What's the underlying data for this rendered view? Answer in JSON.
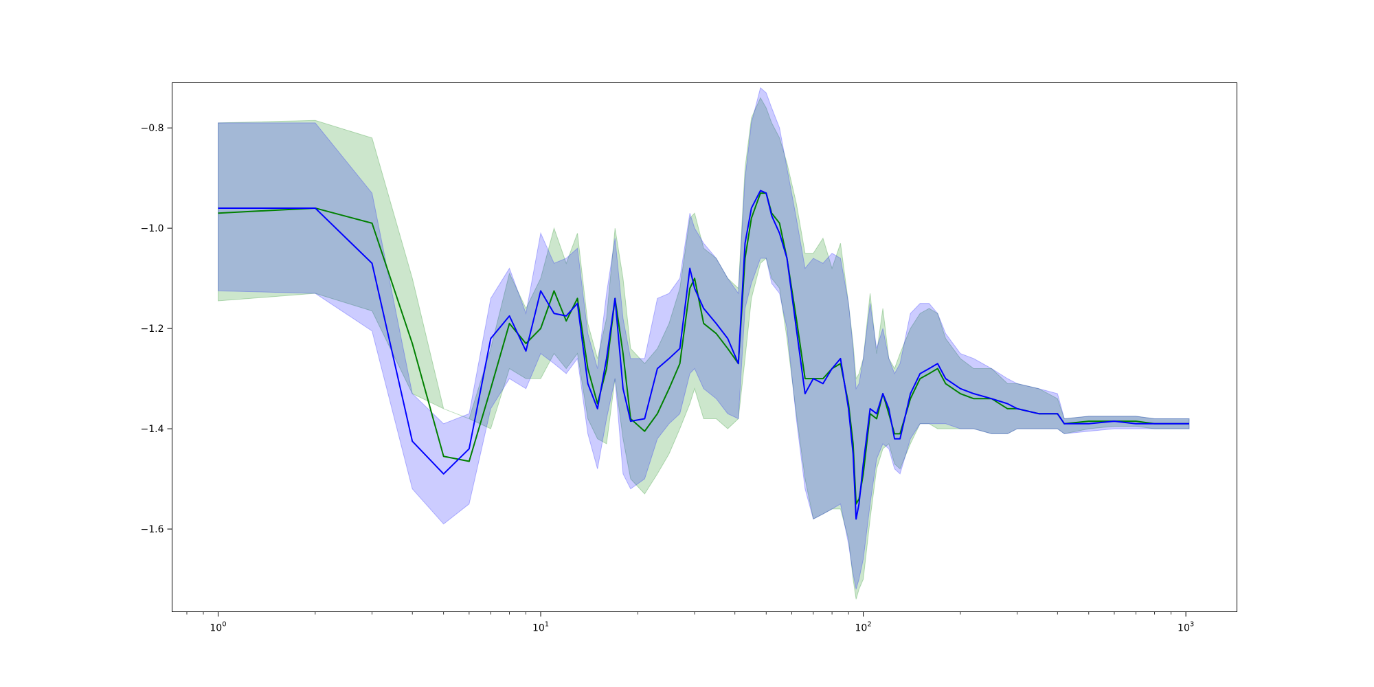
{
  "chart_data": {
    "type": "line",
    "title": "",
    "xlabel": "",
    "ylabel": "",
    "xscale": "log",
    "xlim": [
      0.72,
      1440
    ],
    "ylim": [
      -1.765,
      -0.71
    ],
    "grid": false,
    "legend": "none",
    "x_ticks": [
      {
        "value": 1,
        "base": "10",
        "exp": "0"
      },
      {
        "value": 10,
        "base": "10",
        "exp": "1"
      },
      {
        "value": 100,
        "base": "10",
        "exp": "2"
      },
      {
        "value": 1000,
        "base": "10",
        "exp": "3"
      }
    ],
    "y_ticks": [
      {
        "value": -0.8,
        "label": "−0.8"
      },
      {
        "value": -1.0,
        "label": "−1.0"
      },
      {
        "value": -1.2,
        "label": "−1.2"
      },
      {
        "value": -1.4,
        "label": "−1.4"
      },
      {
        "value": -1.6,
        "label": "−1.6"
      }
    ],
    "series": [
      {
        "color": "#008000",
        "band_color": "#008000",
        "x": [
          1,
          2,
          3,
          4,
          5,
          6,
          7,
          8,
          9,
          10,
          11,
          12,
          13,
          14,
          15,
          16,
          17,
          18,
          19,
          21,
          23,
          25,
          27,
          29,
          30,
          32,
          35,
          38,
          41,
          43,
          45,
          48,
          50,
          52,
          55,
          58,
          62,
          66,
          70,
          75,
          80,
          85,
          90,
          93,
          95,
          97,
          100,
          105,
          110,
          115,
          120,
          125,
          130,
          140,
          150,
          160,
          170,
          180,
          200,
          220,
          250,
          280,
          300,
          350,
          400,
          420,
          500,
          600,
          700,
          800,
          900,
          1024
        ],
        "y": [
          -0.97,
          -0.96,
          -0.99,
          -1.23,
          -1.455,
          -1.465,
          -1.32,
          -1.19,
          -1.23,
          -1.2,
          -1.125,
          -1.185,
          -1.14,
          -1.28,
          -1.35,
          -1.28,
          -1.14,
          -1.25,
          -1.38,
          -1.405,
          -1.37,
          -1.32,
          -1.27,
          -1.12,
          -1.1,
          -1.19,
          -1.21,
          -1.24,
          -1.27,
          -1.06,
          -0.98,
          -0.93,
          -0.93,
          -0.97,
          -0.99,
          -1.06,
          -1.18,
          -1.3,
          -1.3,
          -1.3,
          -1.28,
          -1.27,
          -1.35,
          -1.43,
          -1.55,
          -1.54,
          -1.49,
          -1.37,
          -1.38,
          -1.33,
          -1.37,
          -1.41,
          -1.41,
          -1.34,
          -1.3,
          -1.29,
          -1.28,
          -1.31,
          -1.33,
          -1.34,
          -1.34,
          -1.36,
          -1.36,
          -1.37,
          -1.37,
          -1.39,
          -1.385,
          -1.385,
          -1.385,
          -1.39,
          -1.39,
          -1.39
        ],
        "lower": [
          -1.145,
          -1.13,
          -1.165,
          -1.33,
          -1.36,
          -1.38,
          -1.4,
          -1.28,
          -1.3,
          -1.3,
          -1.25,
          -1.28,
          -1.25,
          -1.38,
          -1.42,
          -1.43,
          -1.3,
          -1.42,
          -1.5,
          -1.53,
          -1.49,
          -1.45,
          -1.4,
          -1.35,
          -1.32,
          -1.38,
          -1.38,
          -1.4,
          -1.38,
          -1.26,
          -1.14,
          -1.07,
          -1.06,
          -1.1,
          -1.12,
          -1.22,
          -1.37,
          -1.5,
          -1.58,
          -1.57,
          -1.56,
          -1.56,
          -1.62,
          -1.7,
          -1.74,
          -1.72,
          -1.7,
          -1.58,
          -1.48,
          -1.44,
          -1.43,
          -1.47,
          -1.48,
          -1.43,
          -1.39,
          -1.39,
          -1.4,
          -1.4,
          -1.4,
          -1.4,
          -1.41,
          -1.41,
          -1.4,
          -1.4,
          -1.4,
          -1.41,
          -1.4,
          -1.395,
          -1.395,
          -1.4,
          -1.4,
          -1.4
        ],
        "upper": [
          -0.79,
          -0.785,
          -0.82,
          -1.1,
          -1.36,
          -1.38,
          -1.24,
          -1.09,
          -1.16,
          -1.1,
          -1.0,
          -1.07,
          -1.01,
          -1.19,
          -1.26,
          -1.18,
          -1.0,
          -1.1,
          -1.24,
          -1.27,
          -1.24,
          -1.19,
          -1.12,
          -0.98,
          -0.97,
          -1.04,
          -1.06,
          -1.1,
          -1.12,
          -0.88,
          -0.78,
          -0.74,
          -0.76,
          -0.79,
          -0.82,
          -0.87,
          -0.95,
          -1.05,
          -1.05,
          -1.02,
          -1.08,
          -1.03,
          -1.15,
          -1.23,
          -1.3,
          -1.29,
          -1.26,
          -1.13,
          -1.25,
          -1.16,
          -1.26,
          -1.28,
          -1.25,
          -1.2,
          -1.17,
          -1.16,
          -1.17,
          -1.22,
          -1.26,
          -1.28,
          -1.28,
          -1.31,
          -1.31,
          -1.32,
          -1.34,
          -1.38,
          -1.375,
          -1.375,
          -1.375,
          -1.38,
          -1.38,
          -1.38
        ]
      },
      {
        "color": "#0000ff",
        "band_color": "#0000ff",
        "x": [
          1,
          2,
          3,
          4,
          5,
          6,
          7,
          8,
          9,
          10,
          11,
          12,
          13,
          14,
          15,
          16,
          17,
          18,
          19,
          21,
          23,
          25,
          27,
          29,
          30,
          32,
          35,
          38,
          41,
          43,
          45,
          48,
          50,
          52,
          55,
          58,
          62,
          66,
          70,
          75,
          80,
          85,
          90,
          93,
          95,
          97,
          100,
          105,
          110,
          115,
          120,
          125,
          130,
          140,
          150,
          160,
          170,
          180,
          200,
          220,
          250,
          280,
          300,
          350,
          400,
          420,
          500,
          600,
          700,
          800,
          900,
          1024
        ],
        "y": [
          -0.96,
          -0.96,
          -1.07,
          -1.425,
          -1.49,
          -1.44,
          -1.22,
          -1.175,
          -1.245,
          -1.125,
          -1.17,
          -1.175,
          -1.15,
          -1.31,
          -1.36,
          -1.26,
          -1.14,
          -1.32,
          -1.385,
          -1.38,
          -1.28,
          -1.26,
          -1.24,
          -1.08,
          -1.12,
          -1.16,
          -1.19,
          -1.22,
          -1.27,
          -1.03,
          -0.96,
          -0.925,
          -0.93,
          -0.975,
          -1.01,
          -1.06,
          -1.2,
          -1.33,
          -1.3,
          -1.31,
          -1.28,
          -1.26,
          -1.36,
          -1.45,
          -1.58,
          -1.55,
          -1.47,
          -1.36,
          -1.37,
          -1.33,
          -1.36,
          -1.42,
          -1.42,
          -1.33,
          -1.29,
          -1.28,
          -1.27,
          -1.3,
          -1.32,
          -1.33,
          -1.34,
          -1.35,
          -1.36,
          -1.37,
          -1.37,
          -1.39,
          -1.39,
          -1.385,
          -1.39,
          -1.39,
          -1.39,
          -1.39
        ],
        "lower": [
          -1.125,
          -1.13,
          -1.205,
          -1.52,
          -1.59,
          -1.55,
          -1.36,
          -1.3,
          -1.32,
          -1.25,
          -1.27,
          -1.29,
          -1.26,
          -1.41,
          -1.48,
          -1.38,
          -1.3,
          -1.49,
          -1.52,
          -1.5,
          -1.42,
          -1.39,
          -1.37,
          -1.29,
          -1.28,
          -1.32,
          -1.34,
          -1.37,
          -1.38,
          -1.16,
          -1.11,
          -1.06,
          -1.06,
          -1.11,
          -1.13,
          -1.2,
          -1.38,
          -1.52,
          -1.58,
          -1.57,
          -1.56,
          -1.55,
          -1.63,
          -1.69,
          -1.72,
          -1.7,
          -1.66,
          -1.55,
          -1.46,
          -1.43,
          -1.44,
          -1.48,
          -1.49,
          -1.42,
          -1.39,
          -1.39,
          -1.39,
          -1.39,
          -1.4,
          -1.4,
          -1.41,
          -1.41,
          -1.4,
          -1.4,
          -1.4,
          -1.41,
          -1.405,
          -1.4,
          -1.4,
          -1.4,
          -1.4,
          -1.4
        ],
        "upper": [
          -0.79,
          -0.79,
          -0.93,
          -1.33,
          -1.39,
          -1.37,
          -1.14,
          -1.08,
          -1.17,
          -1.01,
          -1.07,
          -1.06,
          -1.04,
          -1.21,
          -1.28,
          -1.13,
          -1.02,
          -1.18,
          -1.26,
          -1.26,
          -1.14,
          -1.13,
          -1.1,
          -0.97,
          -1.0,
          -1.03,
          -1.06,
          -1.1,
          -1.13,
          -0.9,
          -0.79,
          -0.72,
          -0.73,
          -0.76,
          -0.8,
          -0.88,
          -0.98,
          -1.08,
          -1.06,
          -1.07,
          -1.05,
          -1.06,
          -1.15,
          -1.24,
          -1.32,
          -1.31,
          -1.26,
          -1.15,
          -1.24,
          -1.2,
          -1.26,
          -1.29,
          -1.27,
          -1.17,
          -1.15,
          -1.15,
          -1.17,
          -1.21,
          -1.25,
          -1.26,
          -1.28,
          -1.3,
          -1.31,
          -1.32,
          -1.33,
          -1.38,
          -1.375,
          -1.375,
          -1.375,
          -1.38,
          -1.38,
          -1.38
        ]
      }
    ]
  }
}
